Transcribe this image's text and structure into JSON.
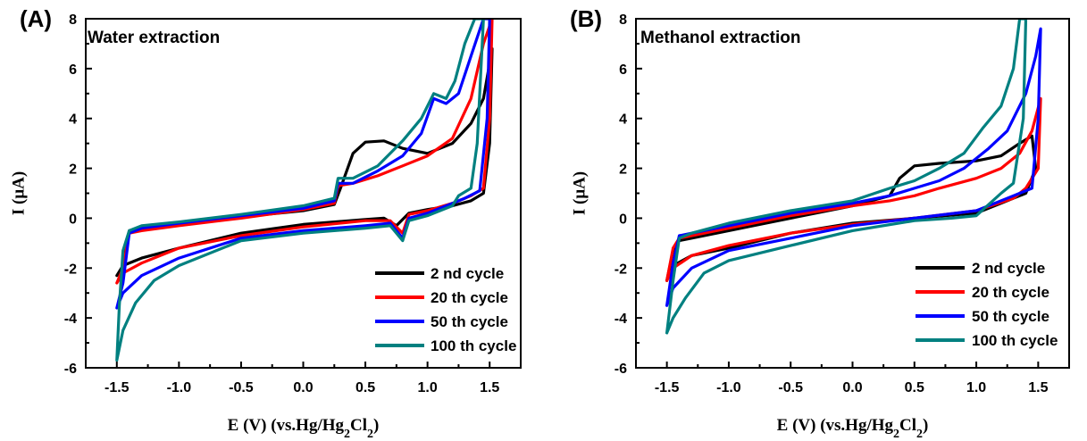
{
  "colors": {
    "2nd": "#000000",
    "20th": "#ff0000",
    "50th": "#0000ff",
    "100th": "#008080"
  },
  "chart_data": [
    {
      "type": "line",
      "panel_label": "(A)",
      "title": "Water extraction",
      "xlabel": "E (V) (vs.Hg/Hg2Cl2)",
      "ylabel": "I (μA)",
      "xlim": [
        -1.75,
        1.75
      ],
      "ylim": [
        -6,
        8
      ],
      "xticks": [
        -1.5,
        -1.0,
        -0.5,
        0.0,
        0.5,
        1.0,
        1.5
      ],
      "xtick_labels": [
        "-1.5",
        "-1.0",
        "-0.5",
        "0.0",
        "0.5",
        "1.0",
        "1.5"
      ],
      "yticks": [
        -6,
        -4,
        -2,
        0,
        2,
        4,
        6,
        8
      ],
      "ytick_labels": [
        "-6",
        "-4",
        "-2",
        "0",
        "2",
        "4",
        "6",
        "8"
      ],
      "legend_position": "bottom-right",
      "grid": false,
      "series": [
        {
          "name": "2 nd cycle",
          "color_key": "2nd",
          "points": [
            [
              -1.5,
              -2.3
            ],
            [
              -1.45,
              -1.9
            ],
            [
              -1.4,
              -0.5
            ],
            [
              -1.3,
              -0.45
            ],
            [
              -1.0,
              -0.2
            ],
            [
              -0.5,
              0.05
            ],
            [
              0.0,
              0.3
            ],
            [
              0.25,
              0.55
            ],
            [
              0.3,
              1.2
            ],
            [
              0.4,
              2.6
            ],
            [
              0.5,
              3.05
            ],
            [
              0.65,
              3.1
            ],
            [
              0.8,
              2.8
            ],
            [
              1.0,
              2.6
            ],
            [
              1.2,
              3.0
            ],
            [
              1.35,
              3.8
            ],
            [
              1.45,
              4.8
            ],
            [
              1.52,
              6.8
            ],
            [
              1.5,
              3.0
            ],
            [
              1.45,
              1.0
            ],
            [
              1.35,
              0.7
            ],
            [
              1.2,
              0.5
            ],
            [
              1.0,
              0.35
            ],
            [
              0.85,
              0.2
            ],
            [
              0.75,
              -0.3
            ],
            [
              0.65,
              0.0
            ],
            [
              0.5,
              -0.05
            ],
            [
              0.0,
              -0.25
            ],
            [
              -0.5,
              -0.6
            ],
            [
              -1.0,
              -1.2
            ],
            [
              -1.3,
              -1.6
            ],
            [
              -1.45,
              -1.9
            ],
            [
              -1.5,
              -2.3
            ]
          ]
        },
        {
          "name": "20 th cycle",
          "color_key": "20th",
          "points": [
            [
              -1.5,
              -2.6
            ],
            [
              -1.45,
              -2.0
            ],
            [
              -1.4,
              -0.6
            ],
            [
              -1.3,
              -0.5
            ],
            [
              -1.0,
              -0.3
            ],
            [
              -0.5,
              0.0
            ],
            [
              0.0,
              0.35
            ],
            [
              0.25,
              0.6
            ],
            [
              0.28,
              1.3
            ],
            [
              0.4,
              1.4
            ],
            [
              0.6,
              1.7
            ],
            [
              0.8,
              2.1
            ],
            [
              1.0,
              2.5
            ],
            [
              1.2,
              3.2
            ],
            [
              1.35,
              4.8
            ],
            [
              1.45,
              7.0
            ],
            [
              1.52,
              8.0
            ],
            [
              1.5,
              4.0
            ],
            [
              1.45,
              1.2
            ],
            [
              1.35,
              0.9
            ],
            [
              1.2,
              0.6
            ],
            [
              1.0,
              0.3
            ],
            [
              0.85,
              0.15
            ],
            [
              0.8,
              -0.6
            ],
            [
              0.7,
              -0.1
            ],
            [
              0.5,
              -0.1
            ],
            [
              0.0,
              -0.35
            ],
            [
              -0.5,
              -0.7
            ],
            [
              -1.0,
              -1.2
            ],
            [
              -1.3,
              -1.8
            ],
            [
              -1.45,
              -2.2
            ],
            [
              -1.5,
              -2.6
            ]
          ]
        },
        {
          "name": "50 th cycle",
          "color_key": "50th",
          "points": [
            [
              -1.5,
              -3.6
            ],
            [
              -1.45,
              -2.6
            ],
            [
              -1.4,
              -0.6
            ],
            [
              -1.3,
              -0.4
            ],
            [
              -1.0,
              -0.2
            ],
            [
              -0.5,
              0.1
            ],
            [
              0.0,
              0.4
            ],
            [
              0.25,
              0.7
            ],
            [
              0.28,
              1.4
            ],
            [
              0.4,
              1.4
            ],
            [
              0.6,
              1.9
            ],
            [
              0.8,
              2.5
            ],
            [
              0.95,
              3.4
            ],
            [
              1.05,
              4.8
            ],
            [
              1.15,
              4.6
            ],
            [
              1.25,
              5.0
            ],
            [
              1.35,
              6.5
            ],
            [
              1.45,
              8.0
            ],
            [
              1.5,
              8.0
            ],
            [
              1.48,
              4.0
            ],
            [
              1.42,
              1.1
            ],
            [
              1.3,
              0.8
            ],
            [
              1.2,
              0.6
            ],
            [
              1.0,
              0.2
            ],
            [
              0.85,
              0.0
            ],
            [
              0.8,
              -0.8
            ],
            [
              0.7,
              -0.2
            ],
            [
              0.5,
              -0.3
            ],
            [
              0.0,
              -0.5
            ],
            [
              -0.5,
              -0.8
            ],
            [
              -1.0,
              -1.6
            ],
            [
              -1.3,
              -2.3
            ],
            [
              -1.45,
              -3.0
            ],
            [
              -1.5,
              -3.6
            ]
          ]
        },
        {
          "name": "100 th cycle",
          "color_key": "100th",
          "points": [
            [
              -1.5,
              -5.7
            ],
            [
              -1.48,
              -3.5
            ],
            [
              -1.45,
              -1.3
            ],
            [
              -1.4,
              -0.5
            ],
            [
              -1.3,
              -0.3
            ],
            [
              -1.0,
              -0.15
            ],
            [
              -0.5,
              0.15
            ],
            [
              0.0,
              0.5
            ],
            [
              0.25,
              0.8
            ],
            [
              0.28,
              1.6
            ],
            [
              0.4,
              1.6
            ],
            [
              0.6,
              2.1
            ],
            [
              0.8,
              3.1
            ],
            [
              0.95,
              4.0
            ],
            [
              1.05,
              5.0
            ],
            [
              1.15,
              4.8
            ],
            [
              1.22,
              5.5
            ],
            [
              1.3,
              7.0
            ],
            [
              1.38,
              8.0
            ],
            [
              1.45,
              8.0
            ],
            [
              1.4,
              3.0
            ],
            [
              1.35,
              1.2
            ],
            [
              1.25,
              0.9
            ],
            [
              1.2,
              0.5
            ],
            [
              1.0,
              0.1
            ],
            [
              0.85,
              -0.1
            ],
            [
              0.8,
              -0.9
            ],
            [
              0.7,
              -0.3
            ],
            [
              0.5,
              -0.4
            ],
            [
              0.0,
              -0.6
            ],
            [
              -0.5,
              -0.9
            ],
            [
              -1.0,
              -1.9
            ],
            [
              -1.2,
              -2.5
            ],
            [
              -1.35,
              -3.4
            ],
            [
              -1.45,
              -4.5
            ],
            [
              -1.5,
              -5.7
            ]
          ]
        }
      ]
    },
    {
      "type": "line",
      "panel_label": "(B)",
      "title": "Methanol  extraction",
      "xlabel": "E (V) (vs.Hg/Hg2Cl2)",
      "ylabel": "I (μA)",
      "xlim": [
        -1.75,
        1.75
      ],
      "ylim": [
        -6,
        8
      ],
      "xticks": [
        -1.5,
        -1.0,
        -0.5,
        0.0,
        0.5,
        1.0,
        1.5
      ],
      "xtick_labels": [
        "-1.5",
        "-1.0",
        "-0.5",
        "0.0",
        "0.5",
        "1.0",
        "1.5"
      ],
      "yticks": [
        -6,
        -4,
        -2,
        0,
        2,
        4,
        6,
        8
      ],
      "ytick_labels": [
        "-6",
        "-4",
        "-2",
        "0",
        "2",
        "4",
        "6",
        "8"
      ],
      "legend_position": "bottom-right",
      "grid": false,
      "series": [
        {
          "name": "2 nd cycle",
          "color_key": "2nd",
          "points": [
            [
              -1.5,
              -2.5
            ],
            [
              -1.45,
              -1.3
            ],
            [
              -1.4,
              -0.9
            ],
            [
              -1.3,
              -0.8
            ],
            [
              -1.0,
              -0.5
            ],
            [
              -0.5,
              0.0
            ],
            [
              0.0,
              0.5
            ],
            [
              0.3,
              0.9
            ],
            [
              0.38,
              1.6
            ],
            [
              0.5,
              2.1
            ],
            [
              0.7,
              2.2
            ],
            [
              1.0,
              2.3
            ],
            [
              1.2,
              2.5
            ],
            [
              1.35,
              3.0
            ],
            [
              1.45,
              3.3
            ],
            [
              1.48,
              2.0
            ],
            [
              1.4,
              1.0
            ],
            [
              1.2,
              0.6
            ],
            [
              1.0,
              0.2
            ],
            [
              0.5,
              0.0
            ],
            [
              0.0,
              -0.2
            ],
            [
              -0.5,
              -0.6
            ],
            [
              -1.0,
              -1.2
            ],
            [
              -1.3,
              -1.5
            ],
            [
              -1.45,
              -1.9
            ],
            [
              -1.5,
              -2.5
            ]
          ]
        },
        {
          "name": "20 th cycle",
          "color_key": "20th",
          "points": [
            [
              -1.5,
              -2.5
            ],
            [
              -1.45,
              -1.2
            ],
            [
              -1.4,
              -0.8
            ],
            [
              -1.3,
              -0.7
            ],
            [
              -1.0,
              -0.4
            ],
            [
              -0.5,
              0.1
            ],
            [
              0.0,
              0.5
            ],
            [
              0.3,
              0.7
            ],
            [
              0.5,
              0.9
            ],
            [
              0.7,
              1.2
            ],
            [
              1.0,
              1.6
            ],
            [
              1.2,
              2.0
            ],
            [
              1.35,
              2.6
            ],
            [
              1.45,
              3.5
            ],
            [
              1.52,
              4.8
            ],
            [
              1.5,
              2.0
            ],
            [
              1.4,
              1.2
            ],
            [
              1.3,
              0.8
            ],
            [
              1.0,
              0.3
            ],
            [
              0.5,
              0.0
            ],
            [
              0.0,
              -0.25
            ],
            [
              -0.5,
              -0.6
            ],
            [
              -1.0,
              -1.1
            ],
            [
              -1.3,
              -1.5
            ],
            [
              -1.45,
              -2.0
            ],
            [
              -1.5,
              -2.5
            ]
          ]
        },
        {
          "name": "50 th cycle",
          "color_key": "50th",
          "points": [
            [
              -1.5,
              -3.5
            ],
            [
              -1.45,
              -1.8
            ],
            [
              -1.4,
              -0.7
            ],
            [
              -1.3,
              -0.6
            ],
            [
              -1.0,
              -0.3
            ],
            [
              -0.5,
              0.2
            ],
            [
              0.0,
              0.6
            ],
            [
              0.3,
              0.9
            ],
            [
              0.5,
              1.2
            ],
            [
              0.7,
              1.5
            ],
            [
              0.9,
              2.0
            ],
            [
              1.1,
              2.8
            ],
            [
              1.25,
              3.5
            ],
            [
              1.4,
              5.0
            ],
            [
              1.48,
              6.5
            ],
            [
              1.52,
              7.6
            ],
            [
              1.5,
              4.0
            ],
            [
              1.45,
              1.2
            ],
            [
              1.3,
              0.9
            ],
            [
              1.0,
              0.3
            ],
            [
              0.5,
              0.0
            ],
            [
              0.0,
              -0.3
            ],
            [
              -0.5,
              -0.8
            ],
            [
              -1.0,
              -1.3
            ],
            [
              -1.3,
              -2.0
            ],
            [
              -1.45,
              -2.8
            ],
            [
              -1.5,
              -3.5
            ]
          ]
        },
        {
          "name": "100 th cycle",
          "color_key": "100th",
          "points": [
            [
              -1.5,
              -4.6
            ],
            [
              -1.45,
              -2.5
            ],
            [
              -1.4,
              -0.8
            ],
            [
              -1.3,
              -0.6
            ],
            [
              -1.0,
              -0.2
            ],
            [
              -0.5,
              0.3
            ],
            [
              0.0,
              0.7
            ],
            [
              0.3,
              1.2
            ],
            [
              0.5,
              1.5
            ],
            [
              0.7,
              2.0
            ],
            [
              0.9,
              2.6
            ],
            [
              1.05,
              3.6
            ],
            [
              1.2,
              4.5
            ],
            [
              1.3,
              6.0
            ],
            [
              1.35,
              8.0
            ],
            [
              1.4,
              8.0
            ],
            [
              1.38,
              4.0
            ],
            [
              1.3,
              1.4
            ],
            [
              1.2,
              1.0
            ],
            [
              1.0,
              0.1
            ],
            [
              0.8,
              0.0
            ],
            [
              0.5,
              -0.1
            ],
            [
              0.0,
              -0.5
            ],
            [
              -0.5,
              -1.1
            ],
            [
              -1.0,
              -1.7
            ],
            [
              -1.2,
              -2.2
            ],
            [
              -1.35,
              -3.2
            ],
            [
              -1.45,
              -4.0
            ],
            [
              -1.5,
              -4.6
            ]
          ]
        }
      ]
    }
  ]
}
